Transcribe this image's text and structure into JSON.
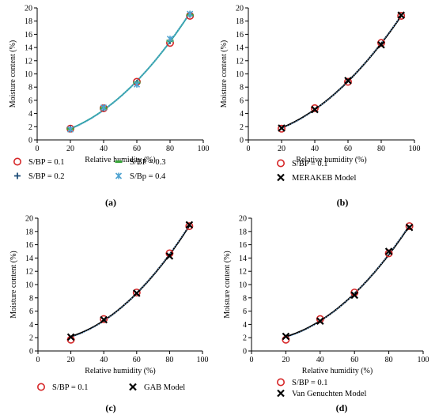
{
  "chart_data": [
    {
      "panel": "(a)",
      "type": "scatter",
      "xlabel": "Relative humidity (%)",
      "ylabel": "Moisture content (%)",
      "xlim": [
        0,
        100
      ],
      "ylim": [
        0,
        20
      ],
      "xticks": [
        0,
        20,
        40,
        60,
        80,
        100
      ],
      "yticks": [
        0,
        2,
        4,
        6,
        8,
        10,
        12,
        14,
        16,
        18,
        20
      ],
      "grid": false,
      "legend_position": "bottom",
      "series": [
        {
          "name": "S/BP = 0.1",
          "marker": "circle",
          "color": "#d62728",
          "x": [
            20,
            40,
            60,
            80,
            92
          ],
          "y": [
            1.7,
            4.8,
            8.8,
            14.7,
            18.8
          ]
        },
        {
          "name": "S/BP = 0.2",
          "marker": "plus",
          "color": "#1f4e79",
          "x": [
            20,
            40,
            60,
            80,
            92
          ],
          "y": [
            1.7,
            4.8,
            8.6,
            15.0,
            19.0
          ]
        },
        {
          "name": "S/BP = 0.3",
          "marker": "dash",
          "color": "#3aa63a",
          "x": [
            20,
            40,
            60,
            80,
            92
          ],
          "y": [
            1.7,
            4.8,
            8.7,
            15.0,
            18.9
          ]
        },
        {
          "name": "S/Bp = 0.4",
          "marker": "star",
          "color": "#4fa3d1",
          "x": [
            20,
            40,
            60,
            80,
            92
          ],
          "y": [
            1.6,
            4.9,
            8.4,
            15.3,
            19.1
          ]
        }
      ],
      "curve_color": "#2aa3a3"
    },
    {
      "panel": "(b)",
      "type": "scatter",
      "xlabel": "Relative humidity (%)",
      "ylabel": "Moisture content (%)",
      "xlim": [
        0,
        100
      ],
      "ylim": [
        0,
        20
      ],
      "xticks": [
        0,
        20,
        40,
        60,
        80,
        100
      ],
      "yticks": [
        0,
        2,
        4,
        6,
        8,
        10,
        12,
        14,
        16,
        18,
        20
      ],
      "grid": false,
      "legend_position": "bottom",
      "series": [
        {
          "name": "S/BP = 0.1",
          "marker": "circle",
          "color": "#d62728",
          "x": [
            20,
            40,
            60,
            80,
            92
          ],
          "y": [
            1.7,
            4.8,
            8.8,
            14.7,
            18.8
          ]
        },
        {
          "name": "MERAKEB Model",
          "marker": "x",
          "color": "#000000",
          "x": [
            20,
            40,
            60,
            80,
            92
          ],
          "y": [
            1.8,
            4.6,
            9.0,
            14.4,
            18.9
          ]
        }
      ],
      "curve_color": "#000000"
    },
    {
      "panel": "(c)",
      "type": "scatter",
      "xlabel": "Relative humidity (%)",
      "ylabel": "Moisture content (%)",
      "xlim": [
        0,
        100
      ],
      "ylim": [
        0,
        20
      ],
      "xticks": [
        0,
        20,
        40,
        60,
        80,
        100
      ],
      "yticks": [
        0,
        2,
        4,
        6,
        8,
        10,
        12,
        14,
        16,
        18,
        20
      ],
      "grid": false,
      "legend_position": "bottom",
      "series": [
        {
          "name": "S/BP = 0.1",
          "marker": "circle",
          "color": "#d62728",
          "x": [
            20,
            40,
            60,
            80,
            92
          ],
          "y": [
            1.7,
            4.8,
            8.8,
            14.7,
            18.8
          ]
        },
        {
          "name": "GAB Model",
          "marker": "x",
          "color": "#000000",
          "x": [
            20,
            40,
            60,
            80,
            92
          ],
          "y": [
            2.1,
            4.7,
            8.7,
            14.3,
            19.0
          ]
        }
      ],
      "curve_color": "#000000"
    },
    {
      "panel": "(d)",
      "type": "scatter",
      "xlabel": "Relative humidity (%)",
      "ylabel": "Moisture content (%)",
      "xlim": [
        0,
        100
      ],
      "ylim": [
        0,
        20
      ],
      "xticks": [
        0,
        20,
        40,
        60,
        80,
        100
      ],
      "yticks": [
        0,
        2,
        4,
        6,
        8,
        10,
        12,
        14,
        16,
        18,
        20
      ],
      "grid": false,
      "legend_position": "bottom",
      "series": [
        {
          "name": "S/BP = 0.1",
          "marker": "circle",
          "color": "#d62728",
          "x": [
            20,
            40,
            60,
            80,
            92
          ],
          "y": [
            1.7,
            4.8,
            8.8,
            14.7,
            18.8
          ]
        },
        {
          "name": "Van Genuchten Model",
          "marker": "x",
          "color": "#000000",
          "x": [
            20,
            40,
            60,
            80,
            92
          ],
          "y": [
            2.2,
            4.5,
            8.4,
            15.0,
            18.6
          ]
        }
      ],
      "curve_color": "#000000"
    }
  ]
}
